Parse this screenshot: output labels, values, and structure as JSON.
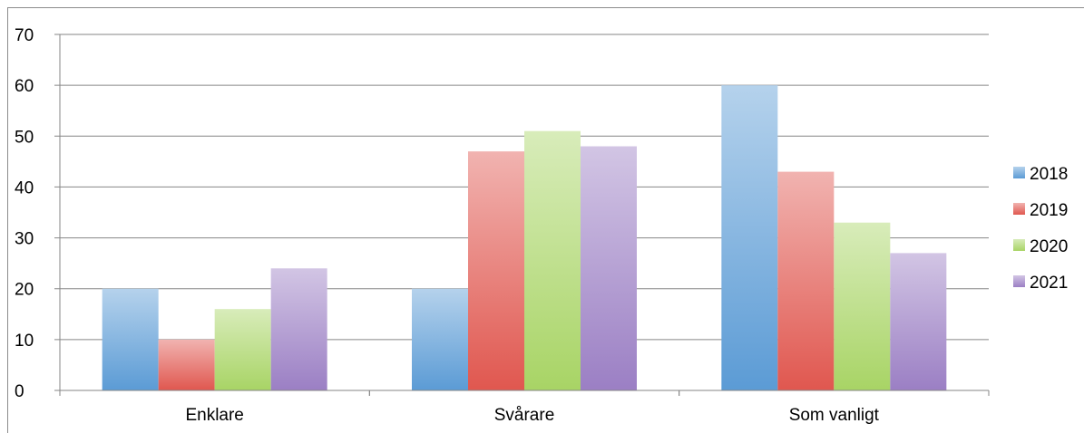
{
  "chart_data": {
    "type": "bar",
    "categories": [
      "Enklare",
      "Svårare",
      "Som vanligt"
    ],
    "series": [
      {
        "name": "2018",
        "values": [
          20,
          20,
          60
        ],
        "color": "#5b9bd5"
      },
      {
        "name": "2019",
        "values": [
          10,
          47,
          43
        ],
        "color": "#e0574f"
      },
      {
        "name": "2020",
        "values": [
          16,
          51,
          33
        ],
        "color": "#a8d465"
      },
      {
        "name": "2021",
        "values": [
          24,
          48,
          27
        ],
        "color": "#9b7fc4"
      }
    ],
    "yticks": [
      "0",
      "10",
      "20",
      "30",
      "40",
      "50",
      "60",
      "70"
    ],
    "ylim": [
      0,
      70
    ],
    "grid": true,
    "legend_position": "right",
    "title": "",
    "xlabel": "",
    "ylabel": ""
  }
}
